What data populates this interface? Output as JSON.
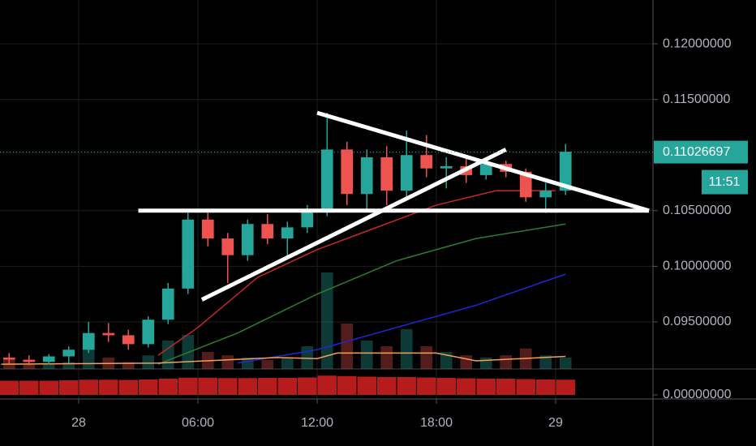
{
  "chart_data": {
    "type": "candlestick",
    "x": [
      -3.5,
      -2.5,
      -1.5,
      -0.5,
      0.5,
      1.5,
      2.5,
      3.5,
      4.5,
      5.5,
      6.5,
      7.5,
      8.5,
      9.5,
      10.5,
      11.5,
      12.5,
      13.5,
      14.5,
      15.5,
      16.5,
      17.5,
      18.5,
      19.5,
      20.5,
      21.5,
      22.5,
      23.5,
      24.5
    ],
    "open": [
      0.0918,
      0.0916,
      0.0914,
      0.0919,
      0.0925,
      0.094,
      0.0938,
      0.093,
      0.0952,
      0.098,
      0.1042,
      0.1025,
      0.101,
      0.1038,
      0.1025,
      0.1035,
      0.105,
      0.1105,
      0.1065,
      0.1098,
      0.1068,
      0.11,
      0.1088,
      0.109,
      0.1082,
      0.1092,
      0.1085,
      0.1062,
      0.1068
    ],
    "high": [
      0.0922,
      0.092,
      0.0921,
      0.0928,
      0.095,
      0.0949,
      0.0943,
      0.0955,
      0.0985,
      0.1048,
      0.1048,
      0.103,
      0.1042,
      0.1047,
      0.104,
      0.1055,
      0.1138,
      0.1112,
      0.1105,
      0.1108,
      0.1122,
      0.1118,
      0.1098,
      0.11,
      0.1095,
      0.1095,
      0.1088,
      0.1075,
      0.111
    ],
    "low": [
      0.0912,
      0.0911,
      0.0912,
      0.0913,
      0.0922,
      0.0932,
      0.0925,
      0.0927,
      0.0948,
      0.0975,
      0.1018,
      0.0985,
      0.1005,
      0.102,
      0.1008,
      0.103,
      0.1045,
      0.1055,
      0.105,
      0.1055,
      0.106,
      0.108,
      0.107,
      0.1075,
      0.1078,
      0.108,
      0.1058,
      0.1048,
      0.1064
    ],
    "close": [
      0.0916,
      0.0914,
      0.0919,
      0.0925,
      0.094,
      0.0938,
      0.093,
      0.0952,
      0.098,
      0.1042,
      0.1025,
      0.101,
      0.1038,
      0.1025,
      0.1035,
      0.105,
      0.1105,
      0.1065,
      0.1098,
      0.1068,
      0.11,
      0.1088,
      0.109,
      0.1082,
      0.1092,
      0.1085,
      0.1062,
      0.1068,
      0.1103
    ],
    "up_color": "#26a69a",
    "down_color": "#ef5350",
    "volume": {
      "values": [
        8,
        4,
        5,
        6,
        30,
        10,
        6,
        12,
        25,
        30,
        15,
        12,
        10,
        8,
        10,
        20,
        85,
        40,
        25,
        20,
        35,
        20,
        15,
        12,
        10,
        12,
        18,
        12,
        10
      ],
      "ylim": [
        0,
        100
      ]
    },
    "ma": [
      {
        "color": "#c62828",
        "x": [
          4,
          6,
          9,
          12,
          15,
          18,
          21,
          24
        ],
        "values": [
          0.092,
          0.0945,
          0.099,
          0.1015,
          0.1035,
          0.1055,
          0.1068,
          0.1068
        ]
      },
      {
        "color": "#2e7d32",
        "x": [
          4,
          8,
          12,
          16,
          20,
          24.5
        ],
        "values": [
          0.0912,
          0.094,
          0.0975,
          0.1005,
          0.1025,
          0.1038
        ]
      },
      {
        "color": "#1a2bd6",
        "x": [
          8,
          12,
          16,
          20,
          24.5
        ],
        "values": [
          0.0913,
          0.0925,
          0.0945,
          0.0965,
          0.0993
        ]
      },
      {
        "color": "#f5a05a",
        "x": [
          -3.9,
          4,
          10,
          12,
          13,
          18,
          20,
          24.5
        ],
        "values": [
          0.0912,
          0.0913,
          0.0918,
          0.0917,
          0.0922,
          0.0922,
          0.0915,
          0.0919
        ]
      }
    ],
    "trendlines": [
      {
        "x": [
          3.0,
          28.7
        ],
        "values": [
          0.105,
          0.105
        ]
      },
      {
        "x": [
          12.0,
          28.7
        ],
        "values": [
          0.1138,
          0.105
        ]
      },
      {
        "x": [
          6.2,
          21.5
        ],
        "values": [
          0.097,
          0.1105
        ]
      }
    ],
    "indicator": {
      "color": "#b71c1c",
      "values": [
        0.7,
        0.7,
        0.7,
        0.72,
        0.75,
        0.75,
        0.74,
        0.76,
        0.8,
        0.85,
        0.85,
        0.83,
        0.83,
        0.84,
        0.84,
        0.86,
        0.95,
        0.93,
        0.9,
        0.88,
        0.88,
        0.86,
        0.84,
        0.82,
        0.8,
        0.8,
        0.78,
        0.76,
        0.75
      ],
      "ylim": [
        0,
        1
      ],
      "yticks": [
        {
          "value": 0,
          "label": "0.00000000"
        }
      ]
    },
    "xlim": [
      -3.96,
      28.9
    ],
    "xticks": [
      {
        "value": 0,
        "label": "28"
      },
      {
        "value": 6,
        "label": "06:00"
      },
      {
        "value": 12,
        "label": "12:00"
      },
      {
        "value": 18,
        "label": "18:00"
      },
      {
        "value": 24,
        "label": "29"
      }
    ],
    "ylim": [
      0.09077,
      0.12394
    ],
    "yticks": [
      {
        "value": 0.095,
        "label": "0.09500000"
      },
      {
        "value": 0.1,
        "label": "0.10000000"
      },
      {
        "value": 0.105,
        "label": "0.10500000"
      },
      {
        "value": 0.115,
        "label": "0.11500000"
      },
      {
        "value": 0.12,
        "label": "0.12000000"
      }
    ],
    "price_label": {
      "value": 0.11026697,
      "label": "0.11026697"
    },
    "countdown": "11:51",
    "grid": true
  }
}
